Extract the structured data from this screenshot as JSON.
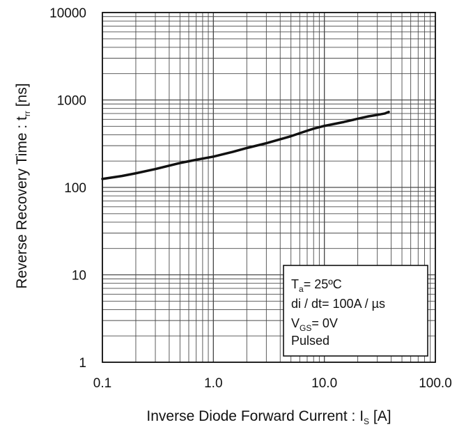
{
  "chart_data": {
    "type": "line",
    "title": "",
    "xlabel": {
      "prefix": "Inverse Diode Forward Current : I",
      "subscript": "S",
      "suffix": " [A]"
    },
    "ylabel": {
      "prefix": "Reverse Recovery Time : t",
      "subscript": "rr",
      "suffix": " [ns]"
    },
    "x_scale": "log",
    "y_scale": "log",
    "xlim": [
      0.1,
      100
    ],
    "ylim": [
      1,
      10000
    ],
    "grid": true,
    "x_ticks": [
      {
        "value": 0.1,
        "label": "0.1"
      },
      {
        "value": 1,
        "label": "1.0"
      },
      {
        "value": 10,
        "label": "10.0"
      },
      {
        "value": 100,
        "label": "100.0"
      }
    ],
    "y_ticks": [
      {
        "value": 1,
        "label": "1"
      },
      {
        "value": 10,
        "label": "10"
      },
      {
        "value": 100,
        "label": "100"
      },
      {
        "value": 1000,
        "label": "1000"
      },
      {
        "value": 10000,
        "label": "10000"
      }
    ],
    "series": [
      {
        "x": [
          0.1,
          0.15,
          0.2,
          0.3,
          0.5,
          0.7,
          1.0,
          1.5,
          2.0,
          3.0,
          5.0,
          7.0,
          8.0,
          10.0,
          15.0,
          20.0,
          25.0,
          30.0,
          35.0,
          38.0
        ],
        "y": [
          125,
          135,
          145,
          162,
          190,
          207,
          225,
          255,
          282,
          320,
          385,
          445,
          470,
          505,
          560,
          610,
          650,
          675,
          700,
          730
        ]
      }
    ],
    "annotation": {
      "line1": {
        "prefix": "T",
        "subscript": "a",
        "suffix": "= 25ºC"
      },
      "line2": "di / dt= 100A / µs",
      "line3": {
        "prefix": "V",
        "subscript": "GS",
        "suffix": "= 0V"
      },
      "line4": "Pulsed"
    }
  }
}
